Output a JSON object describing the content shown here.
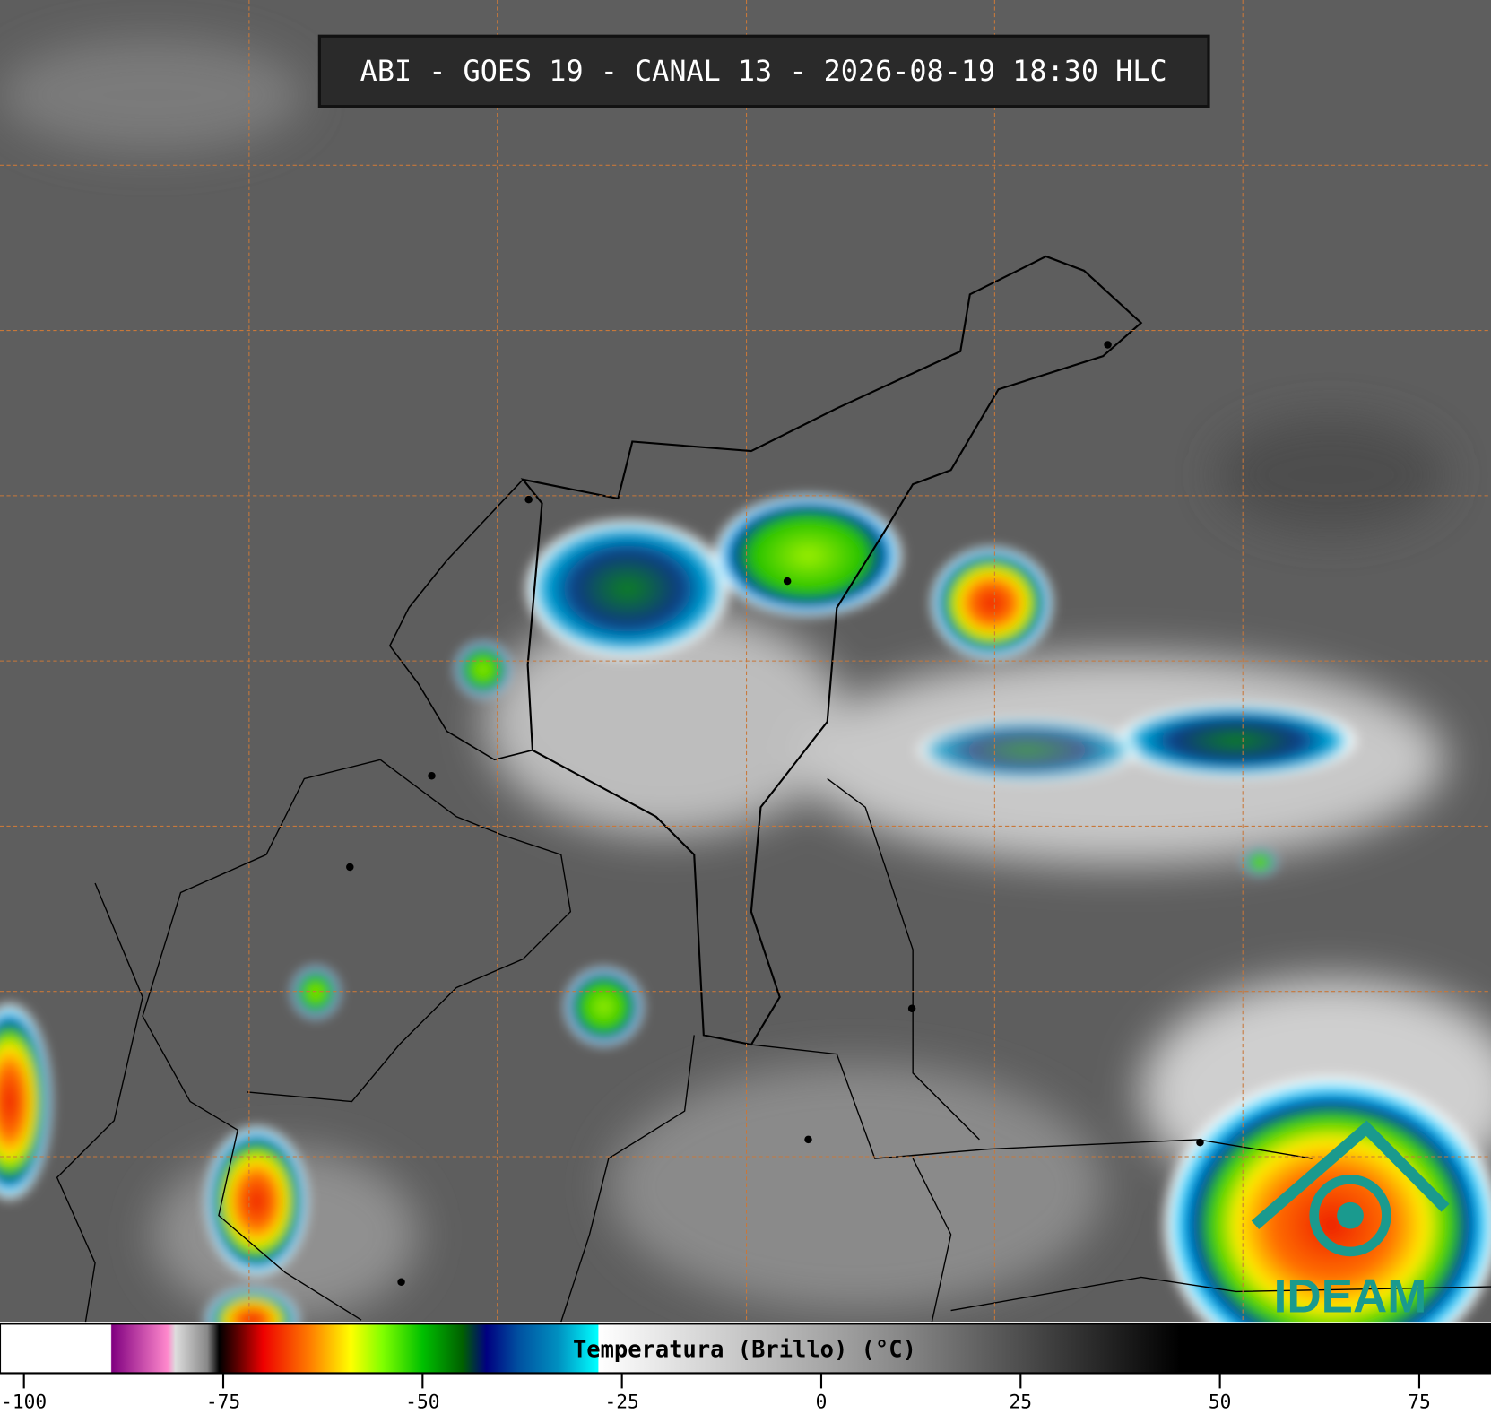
{
  "title": "ABI - GOES 19 - CANAL 13 - 2026-08-19 18:30 HLC",
  "logo": "IDEAM",
  "colorbar": {
    "label": "Temperatura (Brillo) (°C)",
    "range": [
      -103,
      84
    ],
    "ticks": [
      -100,
      -75,
      -50,
      -25,
      0,
      25,
      50,
      75
    ],
    "stops": [
      {
        "value": -103,
        "color": "#ffffff"
      },
      {
        "value": -89.1,
        "color": "#ffffff"
      },
      {
        "value": -89,
        "color": "#800080"
      },
      {
        "value": -82,
        "color": "#ff88cc"
      },
      {
        "value": -81,
        "color": "#dddddd"
      },
      {
        "value": -77,
        "color": "#888888"
      },
      {
        "value": -75.5,
        "color": "#000000"
      },
      {
        "value": -73,
        "color": "#660000"
      },
      {
        "value": -70,
        "color": "#ee0000"
      },
      {
        "value": -64,
        "color": "#ff8000"
      },
      {
        "value": -59,
        "color": "#ffff00"
      },
      {
        "value": -55,
        "color": "#80ff00"
      },
      {
        "value": -50,
        "color": "#00c000"
      },
      {
        "value": -45,
        "color": "#006000"
      },
      {
        "value": -42,
        "color": "#000080"
      },
      {
        "value": -38,
        "color": "#0050a0"
      },
      {
        "value": -33,
        "color": "#0090c0"
      },
      {
        "value": -28,
        "color": "#00ffff"
      },
      {
        "value": -27.9,
        "color": "#ffffff"
      },
      {
        "value": 10,
        "color": "#888888"
      },
      {
        "value": 45,
        "color": "#000000"
      },
      {
        "value": 84,
        "color": "#000000"
      }
    ]
  }
}
